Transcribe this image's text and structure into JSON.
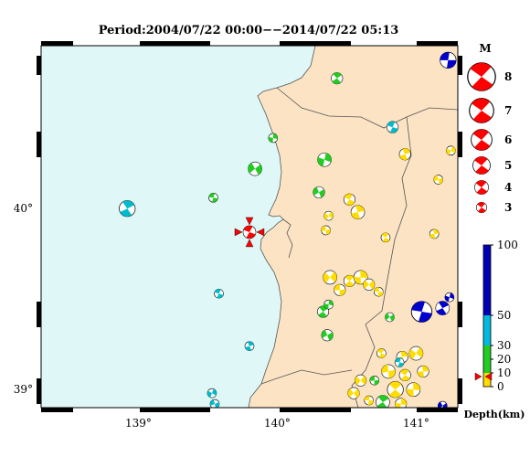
{
  "title": "Period:2004/07/22 00:00−−2014/07/22 05:13",
  "map": {
    "lat_ticks": [
      {
        "label": "40°",
        "value": 40.0
      },
      {
        "label": "39°",
        "value": 39.0
      }
    ],
    "lon_ticks": [
      {
        "label": "139°",
        "value": 139.0
      },
      {
        "label": "140°",
        "value": 140.0
      },
      {
        "label": "141°",
        "value": 141.0
      }
    ],
    "sea_color": "#dff7f7",
    "land_color": "#fbe3c4",
    "bounds": {
      "lon_min": 138.3,
      "lon_max": 141.3,
      "lat_min": 38.9,
      "lat_max": 40.9
    },
    "main_event": {
      "lon": 139.8,
      "lat": 39.87,
      "color": "#ff0000",
      "marker": "red-triangle-marker"
    }
  },
  "events": [
    {
      "lon": 141.23,
      "lat": 40.82,
      "size": 7,
      "color": "#0000cc"
    },
    {
      "lon": 140.43,
      "lat": 40.72,
      "size": 5,
      "color": "#22cc22"
    },
    {
      "lon": 139.97,
      "lat": 40.39,
      "size": 4,
      "color": "#22cc22"
    },
    {
      "lon": 139.84,
      "lat": 40.22,
      "size": 6,
      "color": "#22cc22"
    },
    {
      "lon": 139.54,
      "lat": 40.06,
      "size": 4,
      "color": "#22cc22"
    },
    {
      "lon": 138.92,
      "lat": 40.0,
      "size": 7,
      "color": "#00bbcc"
    },
    {
      "lon": 140.34,
      "lat": 40.27,
      "size": 6,
      "color": "#22cc22"
    },
    {
      "lon": 140.3,
      "lat": 40.09,
      "size": 5,
      "color": "#22cc22"
    },
    {
      "lon": 140.83,
      "lat": 40.45,
      "size": 5,
      "color": "#00bbcc"
    },
    {
      "lon": 140.92,
      "lat": 40.3,
      "size": 5,
      "color": "#ffdd00"
    },
    {
      "lon": 141.25,
      "lat": 40.32,
      "size": 4,
      "color": "#ffdd00"
    },
    {
      "lon": 141.16,
      "lat": 40.16,
      "size": 4,
      "color": "#ffdd00"
    },
    {
      "lon": 140.52,
      "lat": 40.05,
      "size": 5,
      "color": "#ffdd00"
    },
    {
      "lon": 140.58,
      "lat": 39.98,
      "size": 6,
      "color": "#ffdd00"
    },
    {
      "lon": 140.37,
      "lat": 39.96,
      "size": 4,
      "color": "#ffdd00"
    },
    {
      "lon": 140.35,
      "lat": 39.88,
      "size": 4,
      "color": "#ffdd00"
    },
    {
      "lon": 140.78,
      "lat": 39.84,
      "size": 4,
      "color": "#ffdd00"
    },
    {
      "lon": 141.13,
      "lat": 39.86,
      "size": 4,
      "color": "#ffdd00"
    },
    {
      "lon": 140.38,
      "lat": 39.62,
      "size": 6,
      "color": "#ffdd00"
    },
    {
      "lon": 140.45,
      "lat": 39.55,
      "size": 5,
      "color": "#ffdd00"
    },
    {
      "lon": 140.52,
      "lat": 39.6,
      "size": 5,
      "color": "#ffdd00"
    },
    {
      "lon": 140.6,
      "lat": 39.62,
      "size": 6,
      "color": "#ffdd00"
    },
    {
      "lon": 140.66,
      "lat": 39.58,
      "size": 5,
      "color": "#ffdd00"
    },
    {
      "lon": 140.73,
      "lat": 39.54,
      "size": 4,
      "color": "#ffdd00"
    },
    {
      "lon": 140.33,
      "lat": 39.43,
      "size": 5,
      "color": "#22cc22"
    },
    {
      "lon": 140.37,
      "lat": 39.47,
      "size": 4,
      "color": "#22cc22"
    },
    {
      "lon": 140.81,
      "lat": 39.4,
      "size": 4,
      "color": "#22cc22"
    },
    {
      "lon": 141.04,
      "lat": 39.43,
      "size": 9,
      "color": "#0000cc"
    },
    {
      "lon": 141.19,
      "lat": 39.45,
      "size": 6,
      "color": "#0000cc"
    },
    {
      "lon": 141.24,
      "lat": 39.51,
      "size": 4,
      "color": "#0000cc"
    },
    {
      "lon": 140.36,
      "lat": 39.3,
      "size": 5,
      "color": "#22cc22"
    },
    {
      "lon": 139.58,
      "lat": 39.53,
      "size": 4,
      "color": "#00bbcc"
    },
    {
      "lon": 139.8,
      "lat": 39.24,
      "size": 4,
      "color": "#00bbcc"
    },
    {
      "lon": 139.53,
      "lat": 38.98,
      "size": 4,
      "color": "#00bbcc"
    },
    {
      "lon": 139.55,
      "lat": 38.92,
      "size": 4,
      "color": "#00bbcc"
    },
    {
      "lon": 140.75,
      "lat": 39.2,
      "size": 4,
      "color": "#ffdd00"
    },
    {
      "lon": 140.9,
      "lat": 39.18,
      "size": 5,
      "color": "#ffdd00"
    },
    {
      "lon": 141.0,
      "lat": 39.2,
      "size": 6,
      "color": "#ffdd00"
    },
    {
      "lon": 140.8,
      "lat": 39.1,
      "size": 6,
      "color": "#ffdd00"
    },
    {
      "lon": 140.92,
      "lat": 39.08,
      "size": 5,
      "color": "#ffdd00"
    },
    {
      "lon": 141.05,
      "lat": 39.1,
      "size": 5,
      "color": "#ffdd00"
    },
    {
      "lon": 140.6,
      "lat": 39.05,
      "size": 5,
      "color": "#ffdd00"
    },
    {
      "lon": 140.7,
      "lat": 39.05,
      "size": 4,
      "color": "#22cc22"
    },
    {
      "lon": 140.85,
      "lat": 39.0,
      "size": 7,
      "color": "#ffdd00"
    },
    {
      "lon": 140.98,
      "lat": 39.0,
      "size": 6,
      "color": "#ffdd00"
    },
    {
      "lon": 140.55,
      "lat": 38.98,
      "size": 5,
      "color": "#ffdd00"
    },
    {
      "lon": 140.66,
      "lat": 38.94,
      "size": 4,
      "color": "#ffdd00"
    },
    {
      "lon": 140.76,
      "lat": 38.93,
      "size": 6,
      "color": "#22cc22"
    },
    {
      "lon": 140.89,
      "lat": 38.92,
      "size": 5,
      "color": "#ffdd00"
    },
    {
      "lon": 141.19,
      "lat": 38.91,
      "size": 4,
      "color": "#0000cc"
    },
    {
      "lon": 140.88,
      "lat": 39.15,
      "size": 4,
      "color": "#00bbcc"
    }
  ],
  "legend": {
    "title": "M",
    "items": [
      {
        "label": "8",
        "size": 8
      },
      {
        "label": "7",
        "size": 7
      },
      {
        "label": "6",
        "size": 6
      },
      {
        "label": "5",
        "size": 5
      },
      {
        "label": "4",
        "size": 4
      },
      {
        "label": "3",
        "size": 3
      }
    ]
  },
  "depth_scale": {
    "label": "Depth(km)",
    "ticks": [
      {
        "label": "100",
        "value": 100
      },
      {
        "label": "50",
        "value": 50
      },
      {
        "label": "30",
        "value": 30
      },
      {
        "label": "20",
        "value": 20
      },
      {
        "label": "10",
        "value": 10
      },
      {
        "label": "0",
        "value": 0
      }
    ],
    "segments": [
      {
        "from": 50,
        "to": 100,
        "color": "#0000b3"
      },
      {
        "from": 30,
        "to": 50,
        "color": "#00bbdd"
      },
      {
        "from": 10,
        "to": 30,
        "color": "#22cc22"
      },
      {
        "from": 0,
        "to": 10,
        "color": "#ffdd00"
      }
    ],
    "main_event_depth": 10
  }
}
